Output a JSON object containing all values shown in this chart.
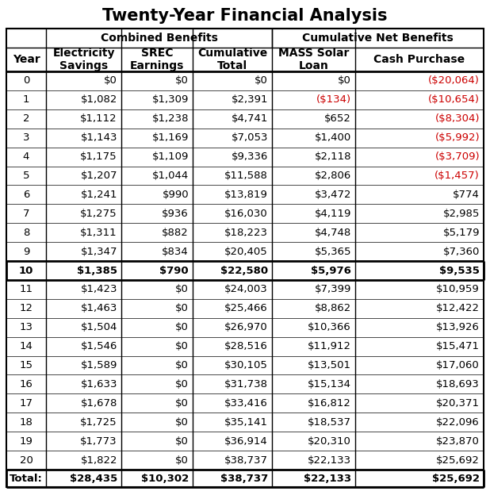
{
  "title": "Twenty-Year Financial Analysis",
  "rows": [
    [
      "0",
      "$0",
      "$0",
      "$0",
      "$0",
      "($20,064)"
    ],
    [
      "1",
      "$1,082",
      "$1,309",
      "$2,391",
      "($134)",
      "($10,654)"
    ],
    [
      "2",
      "$1,112",
      "$1,238",
      "$4,741",
      "$652",
      "($8,304)"
    ],
    [
      "3",
      "$1,143",
      "$1,169",
      "$7,053",
      "$1,400",
      "($5,992)"
    ],
    [
      "4",
      "$1,175",
      "$1,109",
      "$9,336",
      "$2,118",
      "($3,709)"
    ],
    [
      "5",
      "$1,207",
      "$1,044",
      "$11,588",
      "$2,806",
      "($1,457)"
    ],
    [
      "6",
      "$1,241",
      "$990",
      "$13,819",
      "$3,472",
      "$774"
    ],
    [
      "7",
      "$1,275",
      "$936",
      "$16,030",
      "$4,119",
      "$2,985"
    ],
    [
      "8",
      "$1,311",
      "$882",
      "$18,223",
      "$4,748",
      "$5,179"
    ],
    [
      "9",
      "$1,347",
      "$834",
      "$20,405",
      "$5,365",
      "$7,360"
    ],
    [
      "10",
      "$1,385",
      "$790",
      "$22,580",
      "$5,976",
      "$9,535"
    ],
    [
      "11",
      "$1,423",
      "$0",
      "$24,003",
      "$7,399",
      "$10,959"
    ],
    [
      "12",
      "$1,463",
      "$0",
      "$25,466",
      "$8,862",
      "$12,422"
    ],
    [
      "13",
      "$1,504",
      "$0",
      "$26,970",
      "$10,366",
      "$13,926"
    ],
    [
      "14",
      "$1,546",
      "$0",
      "$28,516",
      "$11,912",
      "$15,471"
    ],
    [
      "15",
      "$1,589",
      "$0",
      "$30,105",
      "$13,501",
      "$17,060"
    ],
    [
      "16",
      "$1,633",
      "$0",
      "$31,738",
      "$15,134",
      "$18,693"
    ],
    [
      "17",
      "$1,678",
      "$0",
      "$33,416",
      "$16,812",
      "$20,371"
    ],
    [
      "18",
      "$1,725",
      "$0",
      "$35,141",
      "$18,537",
      "$22,096"
    ],
    [
      "19",
      "$1,773",
      "$0",
      "$36,914",
      "$20,310",
      "$23,870"
    ],
    [
      "20",
      "$1,822",
      "$0",
      "$38,737",
      "$22,133",
      "$25,692"
    ]
  ],
  "total_row": [
    "Total:",
    "$28,435",
    "$10,302",
    "$38,737",
    "$22,133",
    "$25,692"
  ],
  "bold_row_index": 10,
  "red_cells": {
    "col4": [
      1
    ],
    "col5": [
      0,
      1,
      2,
      3,
      4,
      5
    ]
  },
  "title_fontsize": 15,
  "cell_fontsize": 9.5,
  "header_fontsize": 10
}
